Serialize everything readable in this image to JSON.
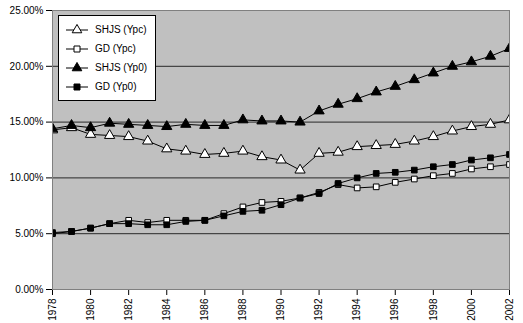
{
  "chart_data": {
    "type": "line",
    "x": [
      1978,
      1979,
      1980,
      1981,
      1982,
      1983,
      1984,
      1985,
      1986,
      1987,
      1988,
      1989,
      1990,
      1991,
      1992,
      1993,
      1994,
      1995,
      1996,
      1997,
      1998,
      1999,
      2000,
      2001,
      2002
    ],
    "series": [
      {
        "name": "SHJS (Ypc)",
        "color": "#000000",
        "marker": "triangle-open",
        "values": [
          14.3,
          14.5,
          13.9,
          13.8,
          13.7,
          13.3,
          12.6,
          12.4,
          12.1,
          12.2,
          12.4,
          11.9,
          11.6,
          10.7,
          12.2,
          12.3,
          12.8,
          12.9,
          13.0,
          13.3,
          13.7,
          14.2,
          14.6,
          14.8,
          15.2
        ]
      },
      {
        "name": "GD (Ypc)",
        "color": "#000000",
        "marker": "square-open",
        "values": [
          5.0,
          5.2,
          5.5,
          5.9,
          6.2,
          6.0,
          6.2,
          6.2,
          6.2,
          6.8,
          7.4,
          7.8,
          7.9,
          8.2,
          8.7,
          9.4,
          9.1,
          9.2,
          9.6,
          9.9,
          10.2,
          10.4,
          10.8,
          11.0,
          11.2
        ]
      },
      {
        "name": "SHJS (Yp0)",
        "color": "#000000",
        "marker": "triangle",
        "values": [
          14.4,
          14.7,
          14.5,
          14.9,
          14.8,
          14.7,
          14.6,
          14.8,
          14.7,
          14.7,
          15.2,
          15.1,
          15.1,
          15.0,
          16.0,
          16.6,
          17.1,
          17.7,
          18.2,
          18.8,
          19.4,
          20.0,
          20.4,
          20.9,
          21.6
        ]
      },
      {
        "name": "GD (Yp0)",
        "color": "#000000",
        "marker": "square",
        "values": [
          5.1,
          5.2,
          5.5,
          5.9,
          5.9,
          5.8,
          5.8,
          6.1,
          6.2,
          6.6,
          7.0,
          7.1,
          7.6,
          8.2,
          8.6,
          9.5,
          10.0,
          10.4,
          10.5,
          10.7,
          11.0,
          11.2,
          11.6,
          11.8,
          12.1
        ]
      }
    ],
    "xlim": [
      1978,
      2002
    ],
    "xticks": [
      1978,
      1980,
      1982,
      1984,
      1986,
      1988,
      1990,
      1992,
      1994,
      1996,
      1998,
      2000,
      2002
    ],
    "ylim": [
      0,
      25
    ],
    "yticks": [
      {
        "value": 0,
        "label": "0.00%"
      },
      {
        "value": 5,
        "label": "5.00%"
      },
      {
        "value": 10,
        "label": "10.00%"
      },
      {
        "value": 15,
        "label": "15.00%"
      },
      {
        "value": 20,
        "label": "20.00%"
      },
      {
        "value": 25,
        "label": "25.00%"
      }
    ],
    "grid": true,
    "legend": "top-left"
  }
}
